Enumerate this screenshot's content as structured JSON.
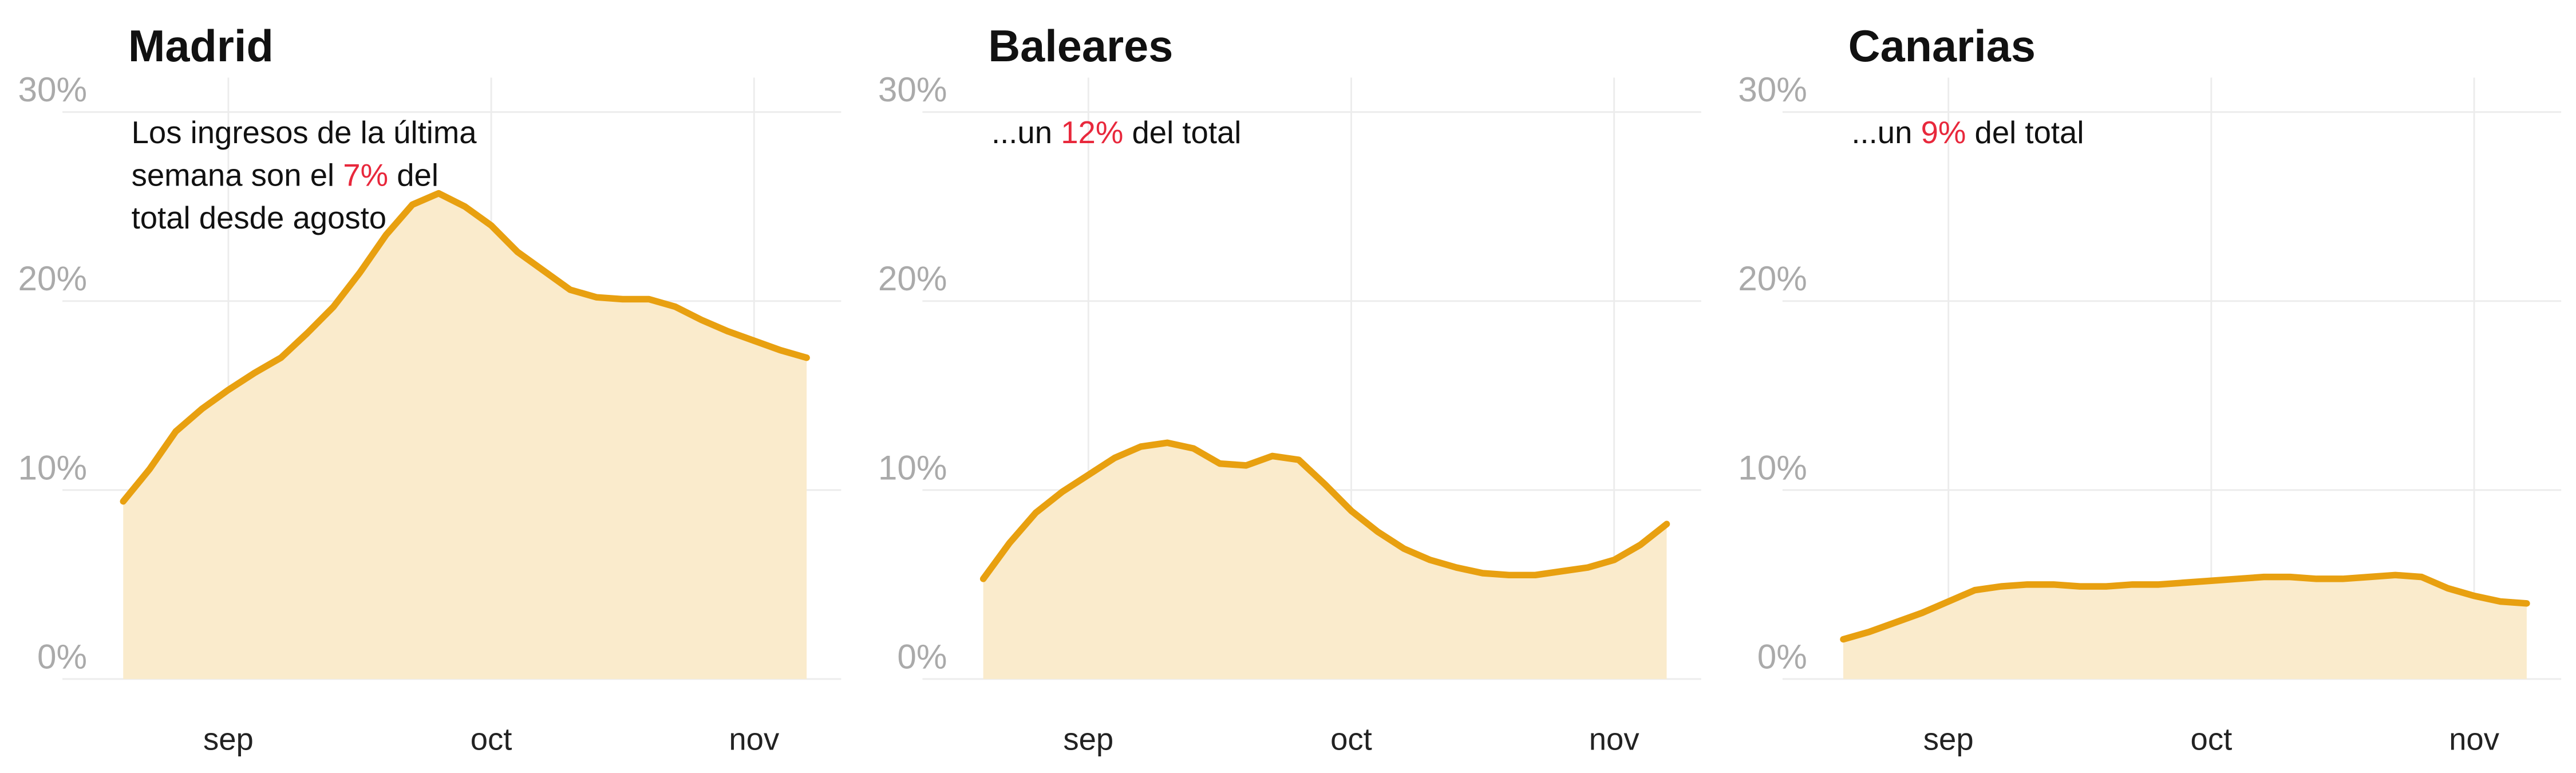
{
  "chart_data": [
    {
      "type": "area",
      "title": "Madrid",
      "annotation": [
        [
          "Los ingresos de la última"
        ],
        [
          "semana son el ",
          {
            "text": "7%",
            "color": "#e8283c"
          },
          " del"
        ],
        [
          "total desde agosto"
        ]
      ],
      "categories": [
        null,
        null,
        null,
        null,
        "sep",
        null,
        null,
        null,
        null,
        null,
        null,
        null,
        null,
        null,
        "oct",
        null,
        null,
        null,
        null,
        null,
        null,
        null,
        null,
        null,
        "nov",
        null,
        null
      ],
      "values": [
        9.4,
        11.1,
        13.1,
        14.3,
        15.3,
        16.2,
        17.0,
        18.3,
        19.7,
        21.5,
        23.5,
        25.1,
        25.7,
        25.0,
        24.0,
        22.6,
        21.6,
        20.6,
        20.2,
        20.1,
        20.1,
        19.7,
        19.0,
        18.4,
        17.9,
        17.4,
        17.0
      ],
      "color": "#e8a010",
      "fill": "#faebcc",
      "ylim": [
        0,
        30
      ],
      "yticks": [
        {
          "value": 0,
          "label": "0%"
        },
        {
          "value": 10,
          "label": "10%"
        },
        {
          "value": 20,
          "label": "20%"
        },
        {
          "value": 30,
          "label": "30%"
        }
      ],
      "grid": true
    },
    {
      "type": "area",
      "title": "Baleares",
      "annotation": [
        [
          "...un ",
          {
            "text": "12%",
            "color": "#e8283c"
          },
          " del total"
        ]
      ],
      "categories": [
        null,
        null,
        null,
        null,
        "sep",
        null,
        null,
        null,
        null,
        null,
        null,
        null,
        null,
        null,
        "oct",
        null,
        null,
        null,
        null,
        null,
        null,
        null,
        null,
        null,
        "nov",
        null,
        null
      ],
      "values": [
        5.3,
        7.2,
        8.8,
        9.9,
        10.8,
        11.7,
        12.3,
        12.5,
        12.2,
        11.4,
        11.3,
        11.8,
        11.6,
        10.3,
        8.9,
        7.8,
        6.9,
        6.3,
        5.9,
        5.6,
        5.5,
        5.5,
        5.7,
        5.9,
        6.3,
        7.1,
        8.2
      ],
      "color": "#e8a010",
      "fill": "#faebcc",
      "ylim": [
        0,
        30
      ],
      "yticks": [
        {
          "value": 0,
          "label": "0%"
        },
        {
          "value": 10,
          "label": "10%"
        },
        {
          "value": 20,
          "label": "20%"
        },
        {
          "value": 30,
          "label": "30%"
        }
      ],
      "grid": true
    },
    {
      "type": "area",
      "title": "Canarias",
      "annotation": [
        [
          "...un ",
          {
            "text": "9%",
            "color": "#e8283c"
          },
          " del total"
        ]
      ],
      "categories": [
        null,
        null,
        null,
        null,
        "sep",
        null,
        null,
        null,
        null,
        null,
        null,
        null,
        null,
        null,
        "oct",
        null,
        null,
        null,
        null,
        null,
        null,
        null,
        null,
        null,
        "nov",
        null,
        null
      ],
      "values": [
        2.1,
        2.5,
        3.0,
        3.5,
        4.1,
        4.7,
        4.9,
        5.0,
        5.0,
        4.9,
        4.9,
        5.0,
        5.0,
        5.1,
        5.2,
        5.3,
        5.4,
        5.4,
        5.3,
        5.3,
        5.4,
        5.5,
        5.4,
        4.8,
        4.4,
        4.1,
        4.0
      ],
      "color": "#e8a010",
      "fill": "#faebcc",
      "ylim": [
        0,
        30
      ],
      "yticks": [
        {
          "value": 0,
          "label": "0%"
        },
        {
          "value": 10,
          "label": "10%"
        },
        {
          "value": 20,
          "label": "20%"
        },
        {
          "value": 30,
          "label": "30%"
        }
      ],
      "grid": true
    }
  ]
}
